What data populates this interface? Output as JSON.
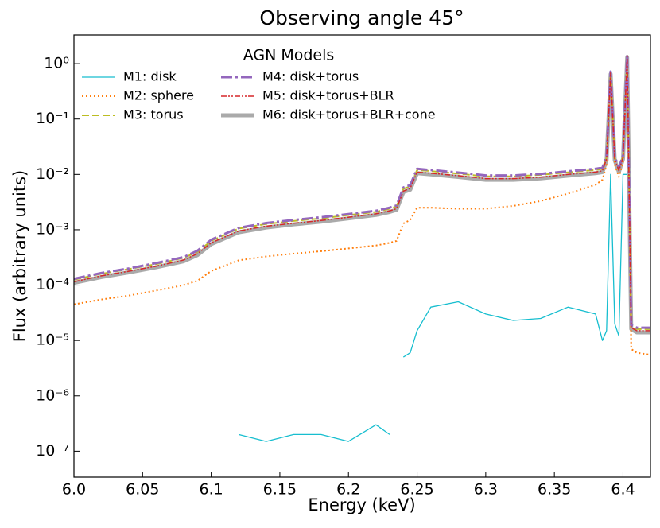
{
  "chart_data": {
    "type": "line",
    "title": "Observing angle 45°",
    "xlabel": "Energy (keV)",
    "ylabel": "Flux (arbitrary units)",
    "legend_title": "AGN Models",
    "legend": "upper left",
    "log_y": true,
    "xlim": [
      6.0,
      6.42
    ],
    "ylim": [
      3.4e-08,
      3.3
    ],
    "xticks": [
      {
        "value": 6.0,
        "label": "6.0"
      },
      6.05,
      6.1,
      6.15,
      6.2,
      6.25,
      6.3,
      6.35,
      6.4
    ],
    "yticks": [
      {
        "value": 1e-07,
        "label": "10⁻⁷"
      },
      {
        "value": 1e-06,
        "label": "10⁻⁶"
      },
      {
        "value": 1e-05,
        "label": "10⁻⁵"
      },
      {
        "value": 0.0001,
        "label": "10⁻⁴"
      },
      {
        "value": 0.001,
        "label": "10⁻³"
      },
      {
        "value": 0.01,
        "label": "10⁻²"
      },
      {
        "value": 0.1,
        "label": "10⁻¹"
      },
      {
        "value": 1,
        "label": "10⁰"
      }
    ],
    "x": [
      6.0,
      6.02,
      6.04,
      6.06,
      6.08,
      6.09,
      6.1,
      6.12,
      6.14,
      6.16,
      6.18,
      6.2,
      6.22,
      6.23,
      6.235,
      6.24,
      6.245,
      6.25,
      6.26,
      6.28,
      6.3,
      6.32,
      6.34,
      6.36,
      6.38,
      6.385,
      6.388,
      6.391,
      6.394,
      6.397,
      6.4,
      6.403,
      6.406,
      6.41,
      6.42
    ],
    "series": [
      {
        "name": "M6: disk+torus+BLR+cone",
        "color": "#aaaaaa",
        "dash": "",
        "width": 5,
        "values": [
          0.00011,
          0.00014,
          0.00017,
          0.00021,
          0.00027,
          0.00035,
          0.00055,
          0.0009,
          0.0011,
          0.00125,
          0.0014,
          0.0016,
          0.00185,
          0.0021,
          0.0023,
          0.0048,
          0.0053,
          0.0105,
          0.01,
          0.009,
          0.008,
          0.008,
          0.0085,
          0.0095,
          0.0105,
          0.011,
          0.018,
          0.65,
          0.018,
          0.011,
          0.019,
          1.3,
          1.6e-05,
          1.4e-05,
          1.4e-05
        ]
      },
      {
        "name": "M1: disk",
        "color": "#17becf",
        "dash": "",
        "width": 1.3,
        "values": [
          null,
          null,
          null,
          null,
          null,
          null,
          null,
          2e-07,
          1.5e-07,
          2e-07,
          2e-07,
          1.5e-07,
          3e-07,
          2e-07,
          null,
          5e-06,
          6e-06,
          1.5e-05,
          4e-05,
          5e-05,
          3e-05,
          2.3e-05,
          2.5e-05,
          4e-05,
          3e-05,
          1e-05,
          1.5e-05,
          0.01,
          2e-05,
          1.2e-05,
          0.01,
          0.01,
          null,
          null,
          null
        ]
      },
      {
        "name": "M2: sphere",
        "color": "#ff7f0e",
        "dash": "2,3",
        "width": 2,
        "values": [
          4.5e-05,
          5.5e-05,
          6.5e-05,
          8e-05,
          0.0001,
          0.00012,
          0.00018,
          0.00028,
          0.00033,
          0.00037,
          0.00041,
          0.00046,
          0.00052,
          0.00058,
          0.00063,
          0.0013,
          0.0015,
          0.0025,
          0.0025,
          0.0024,
          0.0024,
          0.0027,
          0.0033,
          0.0045,
          0.0065,
          0.008,
          0.015,
          0.6,
          0.015,
          0.009,
          0.016,
          1.2,
          7e-06,
          6e-06,
          5.5e-06
        ]
      },
      {
        "name": "M3: torus",
        "color": "#bcbd22",
        "dash": "9,4",
        "width": 2,
        "values": [
          0.000125,
          0.00016,
          0.000195,
          0.00024,
          0.00031,
          0.0004,
          0.00063,
          0.00105,
          0.00127,
          0.00144,
          0.0016,
          0.00184,
          0.0021,
          0.0024,
          0.00265,
          0.0055,
          0.0061,
          0.012,
          0.0115,
          0.0103,
          0.0092,
          0.0092,
          0.0098,
          0.0109,
          0.012,
          0.0126,
          0.02,
          0.7,
          0.02,
          0.0126,
          0.021,
          1.4,
          1.8e-05,
          1.6e-05,
          1.6e-05
        ]
      },
      {
        "name": "M4: disk+torus",
        "color": "#9467bd",
        "dash": "14,4,3,4",
        "width": 3,
        "values": [
          0.00013,
          0.000165,
          0.0002,
          0.00025,
          0.00032,
          0.00042,
          0.00066,
          0.00108,
          0.00132,
          0.0015,
          0.00168,
          0.00192,
          0.0022,
          0.0025,
          0.00275,
          0.0058,
          0.0064,
          0.0126,
          0.012,
          0.0108,
          0.0096,
          0.0096,
          0.0102,
          0.0114,
          0.0126,
          0.0132,
          0.021,
          0.72,
          0.021,
          0.0132,
          0.022,
          1.45,
          1.9e-05,
          1.7e-05,
          1.7e-05
        ]
      },
      {
        "name": "M5: disk+torus+BLR",
        "color": "#d62728",
        "dash": "7,2,2,2,2,2",
        "width": 1.5,
        "values": [
          0.000115,
          0.000147,
          0.000178,
          0.00022,
          0.000285,
          0.00037,
          0.00058,
          0.00095,
          0.00116,
          0.00131,
          0.00147,
          0.00168,
          0.00194,
          0.0022,
          0.0024,
          0.005,
          0.0056,
          0.011,
          0.0105,
          0.0095,
          0.0084,
          0.0084,
          0.0089,
          0.01,
          0.011,
          0.0116,
          0.019,
          0.68,
          0.019,
          0.0116,
          0.02,
          1.35,
          1.7e-05,
          1.5e-05,
          1.5e-05
        ]
      }
    ],
    "legend_order": [
      1,
      2,
      3,
      4,
      5,
      0
    ]
  }
}
